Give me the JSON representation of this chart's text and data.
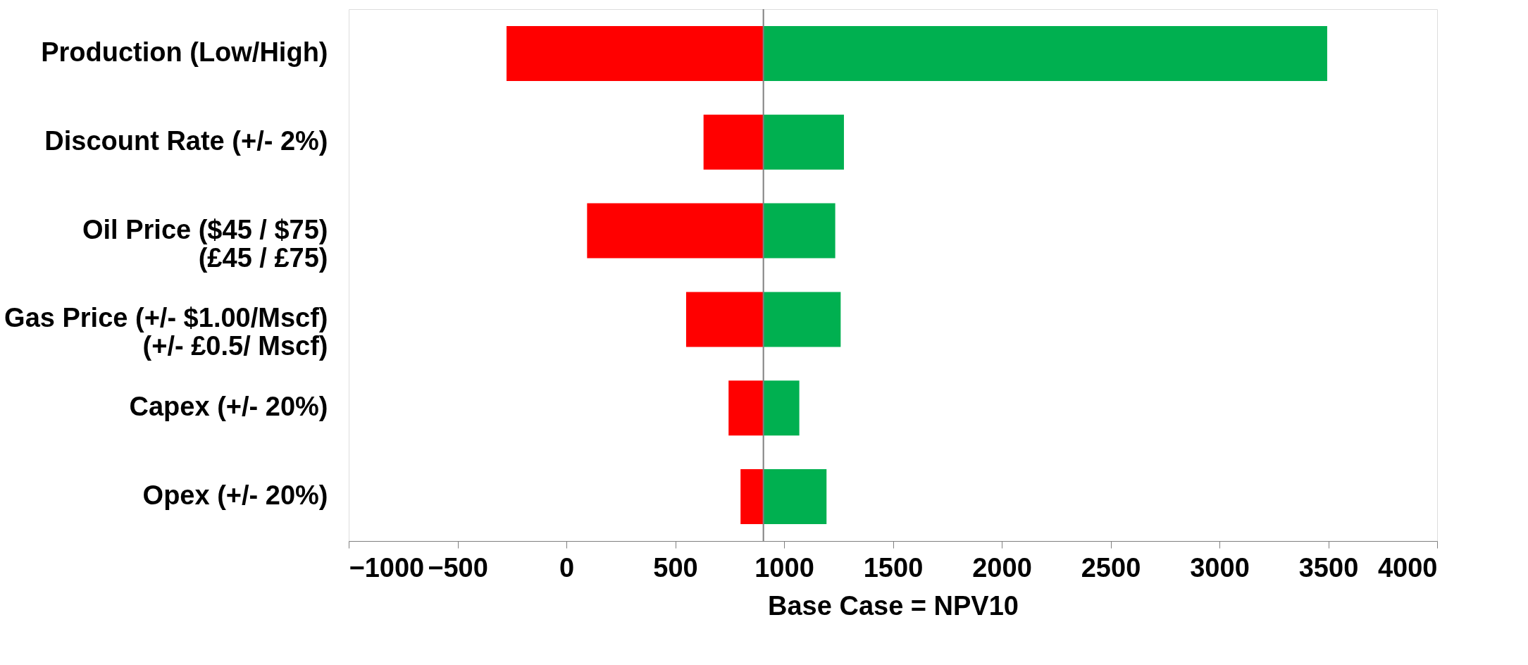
{
  "chart_data": {
    "type": "bar",
    "orientation": "horizontal",
    "xlabel": "Base Case = NPV10",
    "categories": [
      "Production (Low/High)",
      "Discount Rate (+/- 2%)",
      "Oil Price ($45 / $75)\n(£45 / £75)",
      "Gas Price (+/- $1.00/Mscf)\n(+/- £0.5/ Mscf)",
      "Capex (+/- 20%)",
      "Opex (+/- 20%)"
    ],
    "series": [
      {
        "color": "#ff0000",
        "base": [
          905,
          905,
          905,
          905,
          905,
          905
        ],
        "values": [
          -1180,
          -275,
          -810,
          -355,
          -160,
          -105
        ]
      },
      {
        "color": "#00b050",
        "base": [
          905,
          905,
          905,
          905,
          905,
          905
        ],
        "values": [
          2590,
          370,
          330,
          355,
          165,
          290
        ]
      }
    ],
    "xlim": [
      -1000,
      4000
    ],
    "xticks": [
      -1000,
      -500,
      0,
      500,
      1000,
      1500,
      2000,
      2500,
      3000,
      3500,
      4000
    ],
    "ref_lines": [
      {
        "axis": "x",
        "value": 905,
        "color": "#808080"
      }
    ],
    "grid": false,
    "legend": false
  }
}
